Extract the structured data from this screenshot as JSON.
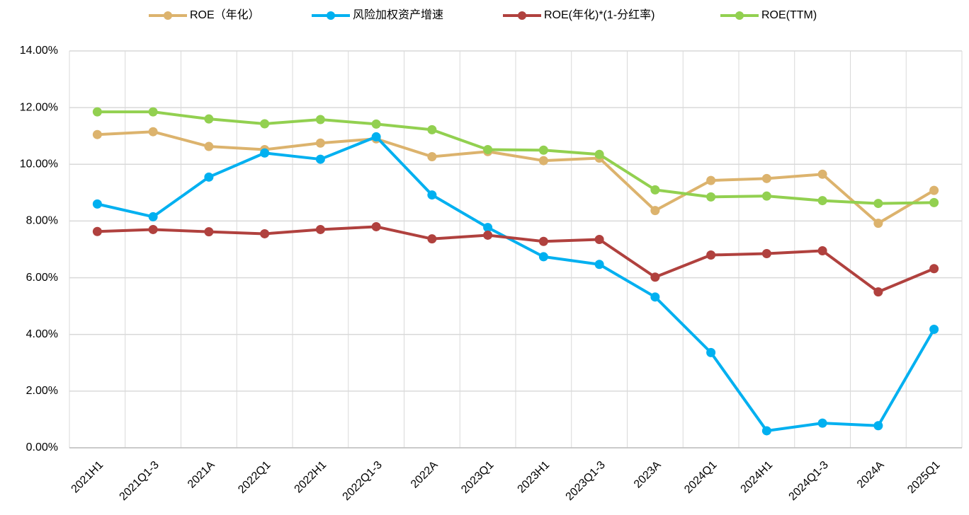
{
  "chart_data": {
    "type": "line",
    "categories": [
      "2021H1",
      "2021Q1-3",
      "2021A",
      "2022Q1",
      "2022H1",
      "2022Q1-3",
      "2022A",
      "2023Q1",
      "2023H1",
      "2023Q1-3",
      "2023A",
      "2024Q1",
      "2024H1",
      "2024Q1-3",
      "2024A",
      "2025Q1"
    ],
    "series": [
      {
        "name": "ROE（年化）",
        "color": "#dcb36d",
        "values": [
          11.05,
          11.15,
          10.63,
          10.52,
          10.75,
          10.9,
          10.27,
          10.45,
          10.13,
          10.22,
          8.37,
          9.43,
          9.5,
          9.65,
          7.92,
          9.08
        ]
      },
      {
        "name": "风险加权资产增速",
        "color": "#00b0f0",
        "values": [
          8.6,
          8.15,
          9.55,
          10.4,
          10.18,
          10.97,
          8.92,
          7.77,
          6.74,
          6.47,
          5.32,
          3.36,
          0.6,
          0.87,
          0.78,
          4.18
        ]
      },
      {
        "name": "ROE(年化)*(1-分红率)",
        "color": "#b0413e",
        "values": [
          7.63,
          7.7,
          7.62,
          7.55,
          7.7,
          7.8,
          7.37,
          7.5,
          7.28,
          7.35,
          6.02,
          6.8,
          6.85,
          6.95,
          5.5,
          6.32
        ]
      },
      {
        "name": "ROE(TTM)",
        "color": "#92d050",
        "values": [
          11.85,
          11.85,
          11.6,
          11.43,
          11.58,
          11.42,
          11.22,
          10.52,
          10.5,
          10.35,
          9.1,
          8.85,
          8.88,
          8.72,
          8.62,
          8.65
        ]
      }
    ],
    "ylim": [
      0,
      14
    ],
    "yticks": [
      {
        "value": 0,
        "label": "0.00%"
      },
      {
        "value": 2,
        "label": "2.00%"
      },
      {
        "value": 4,
        "label": "4.00%"
      },
      {
        "value": 6,
        "label": "6.00%"
      },
      {
        "value": 8,
        "label": "8.00%"
      },
      {
        "value": 10,
        "label": "10.00%"
      },
      {
        "value": 12,
        "label": "12.00%"
      },
      {
        "value": 14,
        "label": "14.00%"
      }
    ],
    "grid": true,
    "legend": "top"
  }
}
